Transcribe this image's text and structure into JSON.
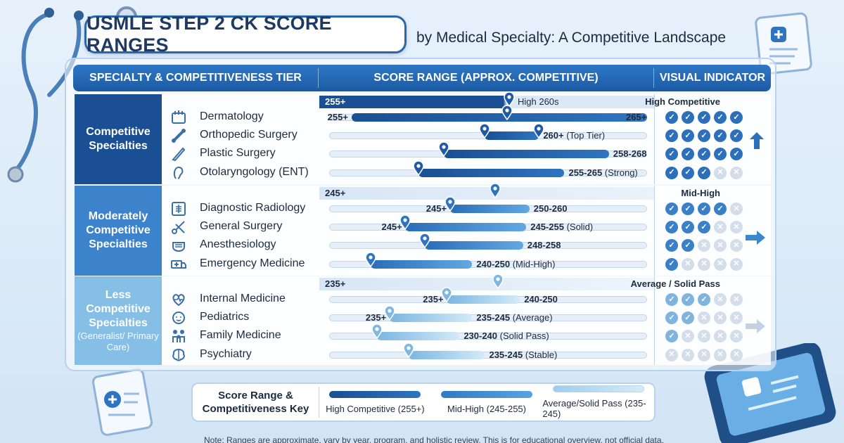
{
  "title": "USMLE STEP 2 CK SCORE RANGES",
  "subtitle": "by Medical Specialty: A Competitive Landscape",
  "header": {
    "col1": "SPECIALTY & COMPETITIVENESS TIER",
    "col2": "SCORE RANGE (APPROX. COMPETITIVE)",
    "col3": "VISUAL INDICATOR"
  },
  "colors": {
    "high": "#1f5aa6",
    "mid": "#3a86cf",
    "low": "#8cc4e8",
    "check_on": "#2f74c0",
    "check_off": "#c9d6e3"
  },
  "groups": [
    {
      "tier": "Competitive Specialties",
      "tier_note": "",
      "rule_left": "255+",
      "rule_right": "High Competitive",
      "rule_pin_label": "High 260s",
      "rows": [
        {
          "name": "Dermatology",
          "icon": "skin-icon",
          "left_label": "255+",
          "right_label": "265+",
          "right_note": "",
          "bar_start": 0.07,
          "bar_end": 1.0,
          "pin": [
            0.56
          ],
          "checks": 5,
          "filled": 5
        },
        {
          "name": "Orthopedic Surgery",
          "icon": "bone-icon",
          "left_label": "",
          "right_label": "260+",
          "right_note": "(Top Tier)",
          "bar_start": 0.49,
          "bar_end": 0.66,
          "pin": [
            0.49,
            0.66
          ],
          "checks": 5,
          "filled": 5
        },
        {
          "name": "Plastic Surgery",
          "icon": "scalpel-icon",
          "left_label": "",
          "right_label": "258-268",
          "right_note": "",
          "bar_start": 0.36,
          "bar_end": 0.88,
          "pin": [
            0.36
          ],
          "checks": 5,
          "filled": 5
        },
        {
          "name": "Otolaryngology (ENT)",
          "icon": "ear-icon",
          "left_label": "",
          "right_label": "255-265",
          "right_note": "(Strong)",
          "bar_start": 0.28,
          "bar_end": 0.74,
          "pin": [
            0.28
          ],
          "checks": 5,
          "filled": 3
        }
      ]
    },
    {
      "tier": "Moderately Competitive Specialties",
      "tier_note": "",
      "rule_left": "245+",
      "rule_right": "Mid-High",
      "rule_pin_label": "",
      "rows": [
        {
          "name": "Diagnostic Radiology",
          "icon": "xray-icon",
          "left_label": "245+",
          "right_label": "250-260",
          "right_note": "",
          "bar_start": 0.38,
          "bar_end": 0.63,
          "pin": [
            0.38
          ],
          "checks": 5,
          "filled": 4
        },
        {
          "name": "General Surgery",
          "icon": "scissors-icon",
          "left_label": "245+",
          "right_label": "245-255",
          "right_note": "(Solid)",
          "bar_start": 0.24,
          "bar_end": 0.62,
          "pin": [
            0.24
          ],
          "checks": 5,
          "filled": 3
        },
        {
          "name": "Anesthesiology",
          "icon": "mask-icon",
          "left_label": "",
          "right_label": "248-258",
          "right_note": "",
          "bar_start": 0.3,
          "bar_end": 0.61,
          "pin": [
            0.3
          ],
          "checks": 5,
          "filled": 2
        },
        {
          "name": "Emergency Medicine",
          "icon": "ambulance-icon",
          "left_label": "",
          "right_label": "240-250",
          "right_note": "(Mid-High)",
          "bar_start": 0.13,
          "bar_end": 0.45,
          "pin": [
            0.13
          ],
          "checks": 5,
          "filled": 1
        }
      ]
    },
    {
      "tier": "Less Competitive Specialties",
      "tier_note": "(Generalist/ Primary Care)",
      "rule_left": "235+",
      "rule_right": "Average / Solid Pass",
      "rule_pin_label": "",
      "rows": [
        {
          "name": "Internal Medicine",
          "icon": "heart-icon",
          "left_label": "235+",
          "right_label": "240-250",
          "right_note": "",
          "bar_start": 0.37,
          "bar_end": 0.6,
          "pin": [
            0.37
          ],
          "checks": 5,
          "filled": 3
        },
        {
          "name": "Pediatrics",
          "icon": "child-icon",
          "left_label": "235+",
          "right_label": "235-245",
          "right_note": "(Average)",
          "bar_start": 0.19,
          "bar_end": 0.45,
          "pin": [
            0.19
          ],
          "checks": 5,
          "filled": 2
        },
        {
          "name": "Family Medicine",
          "icon": "family-icon",
          "left_label": "",
          "right_label": "230-240",
          "right_note": "(Solid Pass)",
          "bar_start": 0.15,
          "bar_end": 0.41,
          "pin": [
            0.15
          ],
          "checks": 5,
          "filled": 1
        },
        {
          "name": "Psychiatry",
          "icon": "brain-icon",
          "left_label": "",
          "right_label": "235-245",
          "right_note": "(Stable)",
          "bar_start": 0.25,
          "bar_end": 0.49,
          "pin": [
            0.25
          ],
          "checks": 5,
          "filled": 0
        }
      ]
    }
  ],
  "key": {
    "title": "Score Range & Competitiveness Key",
    "items": [
      {
        "label": "High Competitive (255+)",
        "tone": "high"
      },
      {
        "label": "Mid-High (245-255)",
        "tone": "mid"
      },
      {
        "label": "Average/Solid Pass (235-245)",
        "tone": "low"
      }
    ]
  },
  "footnote": "Note: Ranges are approximate, vary by year, program, and holistic review. This is for educational overview, not official data."
}
